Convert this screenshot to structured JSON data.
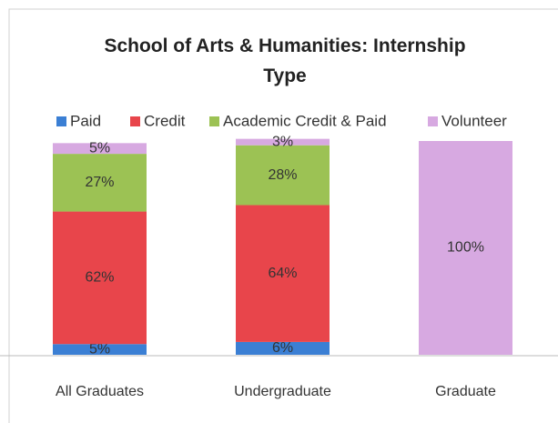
{
  "chart_data": {
    "type": "stacked-bar",
    "title": "School of Arts & Humanities: Internship Type",
    "categories": [
      "All Graduates",
      "Undergraduate",
      "Graduate"
    ],
    "series": [
      {
        "name": "Paid",
        "color": "#3b7fd4",
        "values": [
          5,
          6,
          0
        ],
        "value_labels": [
          "5%",
          "6%",
          null
        ]
      },
      {
        "name": "Credit",
        "color": "#e8454b",
        "values": [
          62,
          64,
          0
        ],
        "value_labels": [
          "62%",
          "64%",
          null
        ]
      },
      {
        "name": "Academic Credit & Paid",
        "color": "#9cc254",
        "values": [
          27,
          28,
          0
        ],
        "value_labels": [
          "27%",
          "28%",
          null
        ]
      },
      {
        "name": "Volunteer",
        "color": "#d7a9e1",
        "values": [
          5,
          3,
          100
        ],
        "value_labels": [
          "5%",
          "3%",
          "100%"
        ]
      }
    ],
    "ylim": [
      0,
      100
    ],
    "legend": "top"
  }
}
